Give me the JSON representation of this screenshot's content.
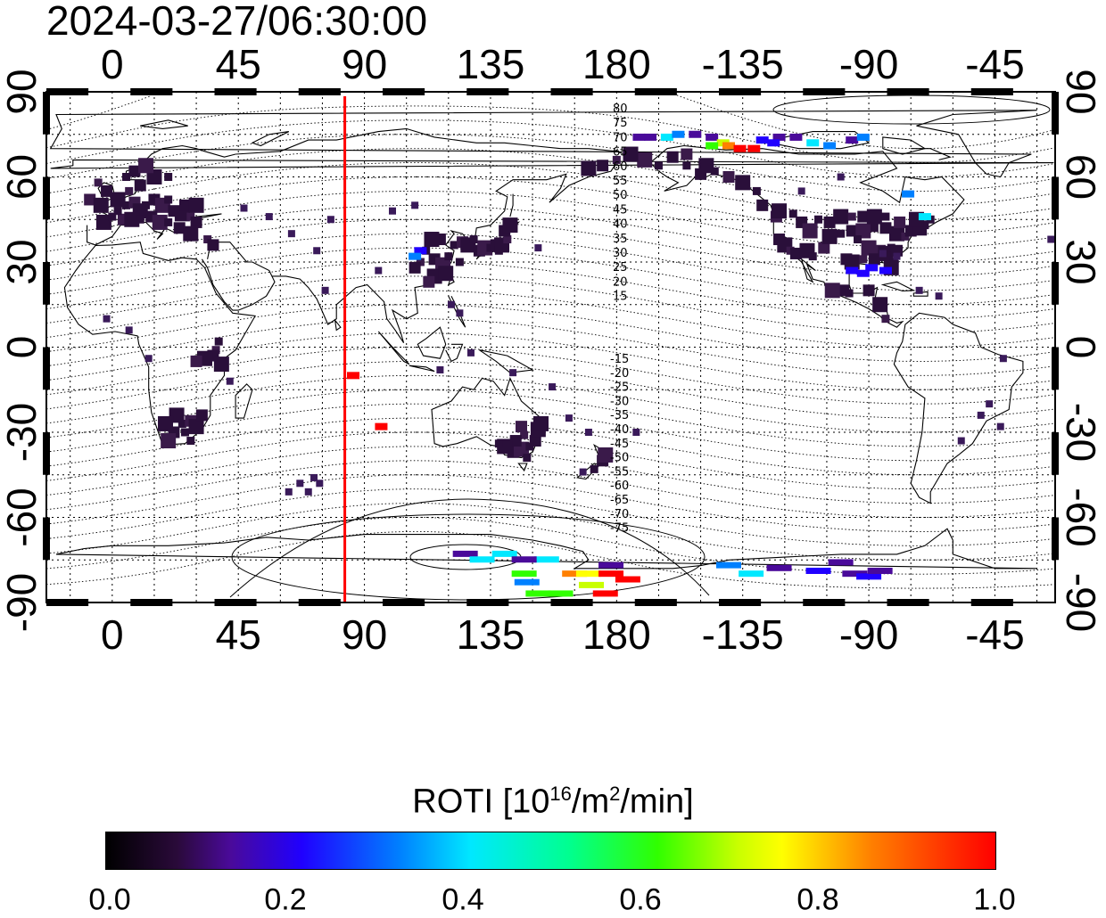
{
  "timestamp": "2024-03-27/06:30:00",
  "map": {
    "top_lon_labels": [
      "0",
      "45",
      "90",
      "135",
      "180",
      "-135",
      "-90",
      "-45"
    ],
    "bottom_lon_labels": [
      "0",
      "45",
      "90",
      "135",
      "180",
      "-135",
      "-90",
      "-45"
    ],
    "left_lat_labels": [
      "90",
      "60",
      "30",
      "0",
      "-30",
      "-60",
      "-90"
    ],
    "right_lat_labels": [
      "90",
      "60",
      "30",
      "0",
      "-30",
      "-60",
      "-90"
    ],
    "sun_meridian_lon": 83,
    "north_contour_labels": [
      "80",
      "75",
      "70",
      "65",
      "60",
      "55",
      "50",
      "45",
      "40",
      "35",
      "30",
      "25",
      "20",
      "15"
    ],
    "south_contour_labels": [
      "-15",
      "-20",
      "-25",
      "-30",
      "-35",
      "-40",
      "-45",
      "-50",
      "-55",
      "-60",
      "-65",
      "-70",
      "-75"
    ],
    "colors": {
      "meridian": "#ff0000",
      "low_roti": "#2a0f3a",
      "grid": "#000000"
    }
  },
  "colorbar": {
    "title_text": "ROTI  [10",
    "title_exp1": "16",
    "title_mid": "/m",
    "title_exp2": "2",
    "title_end": "/min]",
    "min": 0.0,
    "max": 1.0,
    "tick_labels": [
      "0.0",
      "0.2",
      "0.4",
      "0.6",
      "0.8",
      "1.0"
    ],
    "colors": [
      "#000000",
      "#4a0a9a",
      "#2000ff",
      "#00e8ff",
      "#30ff00",
      "#ffff00",
      "#ff0000"
    ]
  }
}
